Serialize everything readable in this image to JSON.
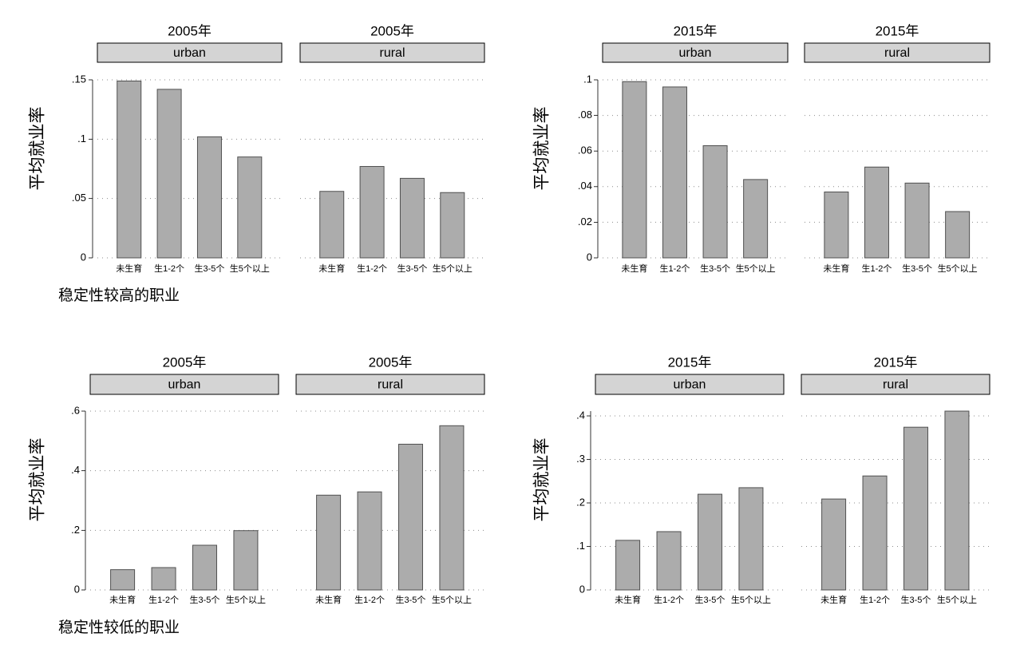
{
  "style": {
    "bar_fill": "#acacac",
    "bar_edge": "#505050",
    "strip_fill": "#d4d4d4"
  },
  "chart_data": [
    {
      "type": "bar",
      "ylabel": "平均就业率",
      "caption": "稳定性较高的职业",
      "categories": [
        "未生育",
        "生1-2个",
        "生3-5个",
        "生5个以上"
      ],
      "ylim": [
        0,
        0.15
      ],
      "yticks": [
        0,
        0.05,
        0.1,
        0.15
      ],
      "ytick_labels": [
        "0",
        ".05",
        ".1",
        ".15"
      ],
      "grid": true,
      "panels": [
        {
          "title": "2005年",
          "strip": "urban",
          "values": [
            0.149,
            0.142,
            0.102,
            0.085
          ]
        },
        {
          "title": "2005年",
          "strip": "rural",
          "values": [
            0.056,
            0.077,
            0.067,
            0.055
          ]
        }
      ]
    },
    {
      "type": "bar",
      "ylabel": "平均就业率",
      "categories": [
        "未生育",
        "生1-2个",
        "生3-5个",
        "生5个以上"
      ],
      "ylim": [
        0,
        0.1
      ],
      "yticks": [
        0,
        0.02,
        0.04,
        0.06,
        0.08,
        0.1
      ],
      "ytick_labels": [
        "0",
        ".02",
        ".04",
        ".06",
        ".08",
        ".1"
      ],
      "grid": true,
      "panels": [
        {
          "title": "2015年",
          "strip": "urban",
          "values": [
            0.099,
            0.096,
            0.063,
            0.044
          ]
        },
        {
          "title": "2015年",
          "strip": "rural",
          "values": [
            0.037,
            0.051,
            0.042,
            0.026
          ]
        }
      ]
    },
    {
      "type": "bar",
      "ylabel": "平均就业率",
      "caption": "稳定性较低的职业",
      "categories": [
        "未生育",
        "生1-2个",
        "生3-5个",
        "生5个以上"
      ],
      "ylim": [
        0,
        0.6
      ],
      "yticks": [
        0,
        0.2,
        0.4,
        0.6
      ],
      "ytick_labels": [
        "0",
        ".2",
        ".4",
        ".6"
      ],
      "grid": true,
      "panels": [
        {
          "title": "2005年",
          "strip": "urban",
          "values": [
            0.068,
            0.075,
            0.15,
            0.199
          ]
        },
        {
          "title": "2005年",
          "strip": "rural",
          "values": [
            0.318,
            0.329,
            0.489,
            0.551
          ]
        }
      ]
    },
    {
      "type": "bar",
      "ylabel": "平均就业率",
      "categories": [
        "未生育",
        "生1-2个",
        "生3-5个",
        "生5个以上"
      ],
      "ylim": [
        0,
        0.41
      ],
      "yticks": [
        0,
        0.1,
        0.2,
        0.3,
        0.4
      ],
      "ytick_labels": [
        "0",
        ".1",
        ".2",
        ".3",
        ".4"
      ],
      "grid": true,
      "panels": [
        {
          "title": "2015年",
          "strip": "urban",
          "values": [
            0.114,
            0.134,
            0.22,
            0.235
          ]
        },
        {
          "title": "2015年",
          "strip": "rural",
          "values": [
            0.209,
            0.262,
            0.374,
            0.411
          ]
        }
      ]
    }
  ]
}
